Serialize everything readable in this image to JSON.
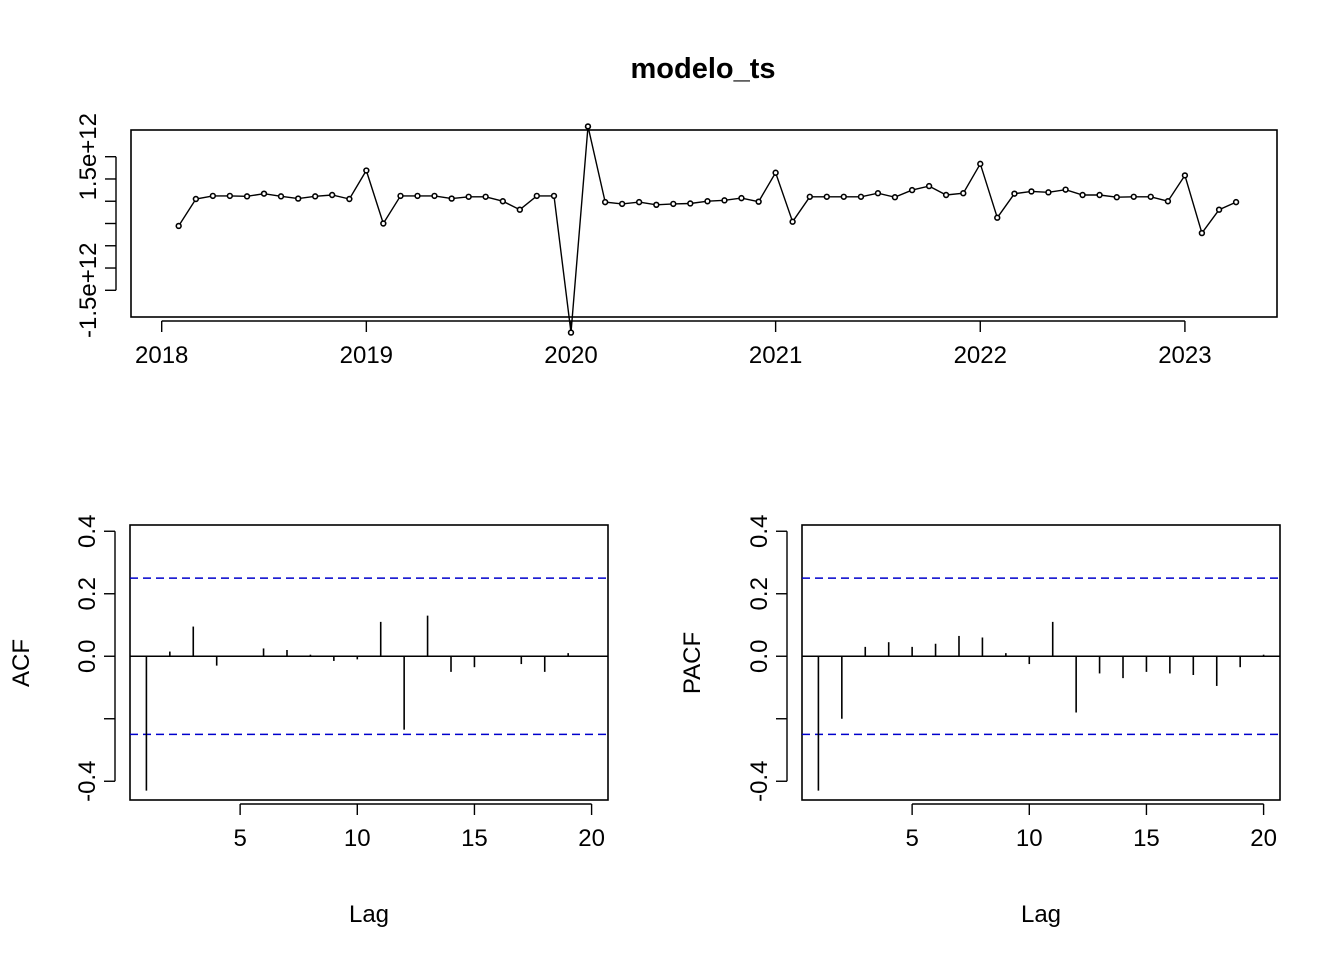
{
  "chart_data": [
    {
      "type": "line",
      "title": "modelo_ts",
      "xlabel": "",
      "ylabel": "",
      "xlim": [
        2017.85,
        2023.45
      ],
      "ylim": [
        -2100000000000.0,
        2100000000000.0
      ],
      "xticks": [
        2018,
        2019,
        2020,
        2021,
        2022,
        2023
      ],
      "xtick_labels": [
        "2018",
        "2019",
        "2020",
        "2021",
        "2022",
        "2023"
      ],
      "yticks": [
        -1500000000000.0,
        -1000000000000.0,
        -500000000000.0,
        0,
        500000000000.0,
        1000000000000.0,
        1500000000000.0
      ],
      "ytick_labels": [
        "-1.5e+12",
        "",
        "",
        "",
        "",
        "",
        "1.5e+12"
      ],
      "grid": false,
      "markers": "open-circle",
      "x": [
        2018.083,
        2018.167,
        2018.25,
        2018.333,
        2018.417,
        2018.5,
        2018.583,
        2018.667,
        2018.75,
        2018.833,
        2018.917,
        2019.0,
        2019.083,
        2019.167,
        2019.25,
        2019.333,
        2019.417,
        2019.5,
        2019.583,
        2019.667,
        2019.75,
        2019.833,
        2019.917,
        2020.0,
        2020.083,
        2020.167,
        2020.25,
        2020.333,
        2020.417,
        2020.5,
        2020.583,
        2020.667,
        2020.75,
        2020.833,
        2020.917,
        2021.0,
        2021.083,
        2021.167,
        2021.25,
        2021.333,
        2021.417,
        2021.5,
        2021.583,
        2021.667,
        2021.75,
        2021.833,
        2021.917,
        2022.0,
        2022.083,
        2022.167,
        2022.25,
        2022.333,
        2022.417,
        2022.5,
        2022.583,
        2022.667,
        2022.75,
        2022.833,
        2022.917,
        2023.0,
        2023.083,
        2023.167,
        2023.25
      ],
      "y": [
        -55000000000.0,
        550000000000.0,
        620000000000.0,
        620000000000.0,
        610000000000.0,
        670000000000.0,
        610000000000.0,
        560000000000.0,
        610000000000.0,
        640000000000.0,
        550000000000.0,
        1190000000000.0,
        0,
        620000000000.0,
        620000000000.0,
        620000000000.0,
        560000000000.0,
        600000000000.0,
        600000000000.0,
        500000000000.0,
        310000000000.0,
        620000000000.0,
        620000000000.0,
        -2450000000000.0,
        2180000000000.0,
        480000000000.0,
        440000000000.0,
        480000000000.0,
        420000000000.0,
        440000000000.0,
        450000000000.0,
        500000000000.0,
        520000000000.0,
        570000000000.0,
        490000000000.0,
        1140000000000.0,
        40000000000.0,
        600000000000.0,
        600000000000.0,
        600000000000.0,
        600000000000.0,
        680000000000.0,
        590000000000.0,
        750000000000.0,
        840000000000.0,
        640000000000.0,
        680000000000.0,
        1340000000000.0,
        130000000000.0,
        670000000000.0,
        720000000000.0,
        700000000000.0,
        760000000000.0,
        640000000000.0,
        640000000000.0,
        590000000000.0,
        600000000000.0,
        600000000000.0,
        500000000000.0,
        1080000000000.0,
        -215000000000.0,
        310000000000.0,
        480000000000.0
      ]
    },
    {
      "type": "bar",
      "title": "",
      "xlabel": "Lag",
      "ylabel": "ACF",
      "xlim": [
        0.3,
        20.7
      ],
      "ylim": [
        -0.46,
        0.42
      ],
      "xticks": [
        5,
        10,
        15,
        20
      ],
      "xtick_labels": [
        "5",
        "10",
        "15",
        "20"
      ],
      "yticks": [
        -0.4,
        -0.2,
        0.0,
        0.2,
        0.4
      ],
      "ytick_labels": [
        "-0.4",
        "",
        "0.0",
        "0.2",
        "0.4"
      ],
      "grid": false,
      "ci": 0.25,
      "lags": [
        1,
        2,
        3,
        4,
        5,
        6,
        7,
        8,
        9,
        10,
        11,
        12,
        13,
        14,
        15,
        16,
        17,
        18,
        19
      ],
      "values": [
        -0.43,
        0.015,
        0.095,
        -0.03,
        0.0,
        0.025,
        0.02,
        0.005,
        -0.015,
        -0.01,
        0.11,
        -0.235,
        0.13,
        -0.05,
        -0.035,
        0.0,
        -0.025,
        -0.05,
        0.01
      ]
    },
    {
      "type": "bar",
      "title": "",
      "xlabel": "Lag",
      "ylabel": "PACF",
      "xlim": [
        0.3,
        20.7
      ],
      "ylim": [
        -0.46,
        0.42
      ],
      "xticks": [
        5,
        10,
        15,
        20
      ],
      "xtick_labels": [
        "5",
        "10",
        "15",
        "20"
      ],
      "yticks": [
        -0.4,
        -0.2,
        0.0,
        0.2,
        0.4
      ],
      "ytick_labels": [
        "-0.4",
        "",
        "0.0",
        "0.2",
        "0.4"
      ],
      "grid": false,
      "ci": 0.25,
      "lags": [
        1,
        2,
        3,
        4,
        5,
        6,
        7,
        8,
        9,
        10,
        11,
        12,
        13,
        14,
        15,
        16,
        17,
        18,
        19,
        20
      ],
      "values": [
        -0.43,
        -0.2,
        0.03,
        0.045,
        0.03,
        0.04,
        0.065,
        0.06,
        0.01,
        -0.025,
        0.11,
        -0.18,
        -0.055,
        -0.07,
        -0.05,
        -0.055,
        -0.06,
        -0.095,
        -0.035,
        0.005
      ]
    }
  ]
}
